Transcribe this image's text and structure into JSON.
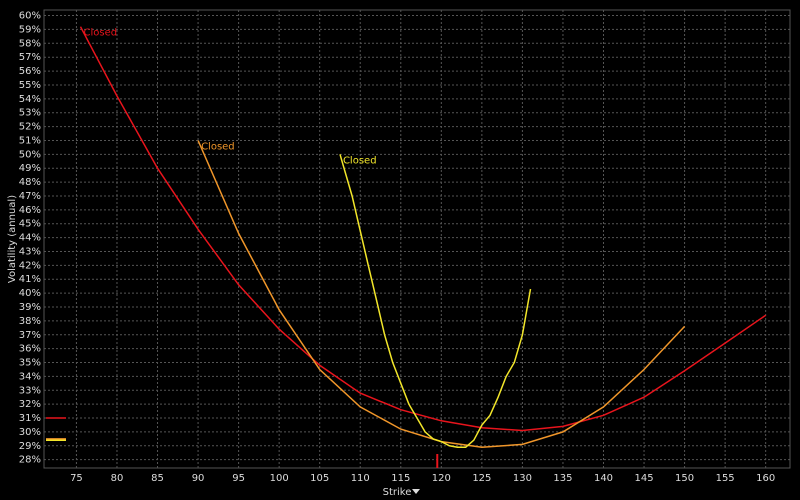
{
  "chart_data": {
    "type": "line",
    "y_label": "Volatility (annual)",
    "x_label": "Strike",
    "xlim": [
      71,
      163
    ],
    "ylim": [
      27.4,
      60.4
    ],
    "xticks": [
      75,
      80,
      85,
      90,
      95,
      100,
      105,
      110,
      115,
      120,
      125,
      130,
      135,
      140,
      145,
      150,
      155,
      160
    ],
    "yticks": [
      {
        "value": 28,
        "label": "28%"
      },
      {
        "value": 29,
        "label": "29%"
      },
      {
        "value": 30,
        "label": "30%"
      },
      {
        "value": 31,
        "label": "31%"
      },
      {
        "value": 32,
        "label": "32%"
      },
      {
        "value": 33,
        "label": "33%"
      },
      {
        "value": 34,
        "label": "34%"
      },
      {
        "value": 35,
        "label": "35%"
      },
      {
        "value": 36,
        "label": "36%"
      },
      {
        "value": 37,
        "label": "37%"
      },
      {
        "value": 38,
        "label": "38%"
      },
      {
        "value": 39,
        "label": "39%"
      },
      {
        "value": 40,
        "label": "40%"
      },
      {
        "value": 41,
        "label": "41%"
      },
      {
        "value": 42,
        "label": "42%"
      },
      {
        "value": 43,
        "label": "43%"
      },
      {
        "value": 44,
        "label": "44%"
      },
      {
        "value": 45,
        "label": "45%"
      },
      {
        "value": 46,
        "label": "46%"
      },
      {
        "value": 47,
        "label": "47%"
      },
      {
        "value": 48,
        "label": "48%"
      },
      {
        "value": 49,
        "label": "49%"
      },
      {
        "value": 50,
        "label": "50%"
      },
      {
        "value": 51,
        "label": "51%"
      },
      {
        "value": 52,
        "label": "52%"
      },
      {
        "value": 53,
        "label": "53%"
      },
      {
        "value": 54,
        "label": "54%"
      },
      {
        "value": 55,
        "label": "55%"
      },
      {
        "value": 56,
        "label": "56%"
      },
      {
        "value": 57,
        "label": "57%"
      },
      {
        "value": 58,
        "label": "58%"
      },
      {
        "value": 59,
        "label": "59%"
      },
      {
        "value": 60,
        "label": "60%"
      }
    ],
    "grid": true,
    "series": [
      {
        "name": "Closed",
        "color": "#e8141c",
        "x": [
          75.5,
          80,
          85,
          90,
          95,
          100,
          105,
          110,
          115,
          120,
          125,
          130,
          135,
          140,
          145,
          150,
          155,
          160
        ],
        "values": [
          59.2,
          54.2,
          49,
          44.6,
          40.6,
          37.4,
          34.8,
          32.8,
          31.6,
          30.8,
          30.3,
          30.1,
          30.4,
          31.2,
          32.5,
          34.4,
          36.4,
          38.4
        ]
      },
      {
        "name": "Closed",
        "color": "#f0962a",
        "x": [
          90,
          95,
          100,
          105,
          110,
          115,
          120,
          125,
          130,
          135,
          140,
          145,
          150
        ],
        "values": [
          51,
          44.3,
          38.8,
          34.5,
          31.8,
          30.2,
          29.3,
          28.9,
          29.1,
          30,
          31.8,
          34.5,
          37.6
        ]
      },
      {
        "name": "Closed",
        "color": "#f2e62a",
        "x": [
          107.5,
          109,
          110,
          111,
          112,
          113,
          114,
          115,
          116,
          117,
          118,
          119,
          120,
          121,
          122,
          123,
          124,
          125,
          126,
          127,
          128,
          129,
          130,
          131
        ],
        "values": [
          50,
          47,
          44.5,
          42,
          39.5,
          37,
          35,
          33.5,
          32,
          31,
          30,
          29.5,
          29.3,
          29,
          28.9,
          28.9,
          29.4,
          30.5,
          31.2,
          32.5,
          34,
          35,
          37,
          40.3
        ]
      }
    ],
    "y_markers": [
      {
        "value": 31,
        "color": "#e8141c"
      },
      {
        "value": 29.5,
        "color": "#f0962a"
      },
      {
        "value": 29.4,
        "color": "#f2e62a"
      }
    ],
    "x_marker": {
      "value": 119.5,
      "color": "#e8141c"
    }
  }
}
